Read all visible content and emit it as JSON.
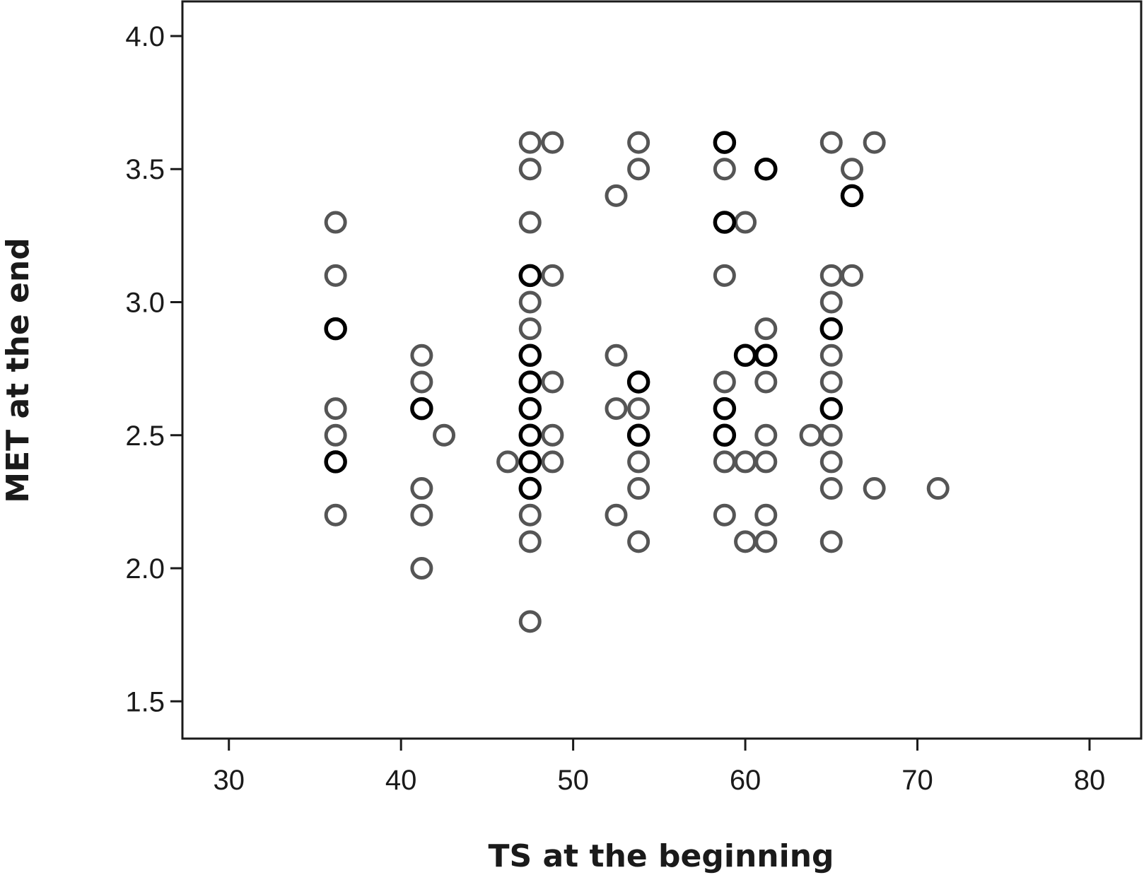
{
  "chart_data": {
    "type": "scatter",
    "title": "",
    "xlabel": "TS at the beginning",
    "ylabel": "MET at the end",
    "xlim": [
      27.3,
      83
    ],
    "ylim": [
      1.36,
      4.13
    ],
    "x_ticks": [
      30,
      40,
      50,
      60,
      70,
      80
    ],
    "y_ticks": [
      1.5,
      2.0,
      2.5,
      3.0,
      3.5,
      4.0
    ],
    "x_tick_labels": [
      "30",
      "40",
      "50",
      "60",
      "70",
      "80"
    ],
    "y_tick_labels": [
      "1.5",
      "2.0",
      "2.5",
      "3.0",
      "3.5",
      "4.0"
    ],
    "grid": false,
    "colors": {
      "single": "#555555",
      "overlap": "#000000"
    },
    "series": [
      {
        "style": "single",
        "points": [
          [
            36.2,
            3.3
          ],
          [
            36.2,
            3.1
          ],
          [
            36.2,
            2.6
          ],
          [
            36.2,
            2.5
          ],
          [
            36.2,
            2.2
          ],
          [
            41.2,
            2.8
          ],
          [
            41.2,
            2.7
          ],
          [
            41.2,
            2.3
          ],
          [
            41.2,
            2.2
          ],
          [
            41.2,
            2.0
          ],
          [
            42.5,
            2.5
          ],
          [
            46.2,
            2.4
          ],
          [
            47.5,
            3.6
          ],
          [
            47.5,
            3.5
          ],
          [
            47.5,
            3.3
          ],
          [
            47.5,
            3.0
          ],
          [
            47.5,
            2.9
          ],
          [
            47.5,
            2.2
          ],
          [
            47.5,
            2.1
          ],
          [
            47.5,
            1.8
          ],
          [
            48.8,
            3.6
          ],
          [
            48.8,
            3.1
          ],
          [
            48.8,
            2.7
          ],
          [
            48.8,
            2.5
          ],
          [
            48.8,
            2.4
          ],
          [
            52.5,
            3.4
          ],
          [
            52.5,
            2.8
          ],
          [
            52.5,
            2.6
          ],
          [
            52.5,
            2.2
          ],
          [
            53.8,
            3.6
          ],
          [
            53.8,
            3.5
          ],
          [
            53.8,
            2.6
          ],
          [
            53.8,
            2.4
          ],
          [
            53.8,
            2.3
          ],
          [
            53.8,
            2.1
          ],
          [
            58.8,
            3.5
          ],
          [
            58.8,
            3.1
          ],
          [
            58.8,
            2.7
          ],
          [
            58.8,
            2.4
          ],
          [
            58.8,
            2.2
          ],
          [
            60.0,
            3.3
          ],
          [
            60.0,
            2.4
          ],
          [
            60.0,
            2.1
          ],
          [
            61.2,
            2.9
          ],
          [
            61.2,
            2.7
          ],
          [
            61.2,
            2.5
          ],
          [
            61.2,
            2.4
          ],
          [
            61.2,
            2.2
          ],
          [
            61.2,
            2.1
          ],
          [
            63.8,
            2.5
          ],
          [
            65.0,
            3.6
          ],
          [
            65.0,
            3.1
          ],
          [
            65.0,
            3.0
          ],
          [
            65.0,
            2.8
          ],
          [
            65.0,
            2.7
          ],
          [
            65.0,
            2.5
          ],
          [
            65.0,
            2.4
          ],
          [
            65.0,
            2.3
          ],
          [
            65.0,
            2.1
          ],
          [
            66.2,
            3.5
          ],
          [
            66.2,
            3.1
          ],
          [
            67.5,
            3.6
          ],
          [
            67.5,
            2.3
          ],
          [
            71.2,
            2.3
          ]
        ]
      },
      {
        "style": "overlap",
        "points": [
          [
            36.2,
            2.9
          ],
          [
            36.2,
            2.4
          ],
          [
            41.2,
            2.6
          ],
          [
            47.5,
            3.1
          ],
          [
            47.5,
            2.8
          ],
          [
            47.5,
            2.7
          ],
          [
            47.5,
            2.6
          ],
          [
            47.5,
            2.5
          ],
          [
            47.5,
            2.4
          ],
          [
            47.5,
            2.3
          ],
          [
            53.8,
            2.7
          ],
          [
            53.8,
            2.5
          ],
          [
            58.8,
            3.6
          ],
          [
            58.8,
            3.3
          ],
          [
            58.8,
            2.6
          ],
          [
            58.8,
            2.5
          ],
          [
            60.0,
            2.8
          ],
          [
            61.2,
            3.5
          ],
          [
            61.2,
            2.8
          ],
          [
            65.0,
            2.9
          ],
          [
            65.0,
            2.6
          ],
          [
            66.2,
            3.4
          ]
        ]
      }
    ]
  }
}
